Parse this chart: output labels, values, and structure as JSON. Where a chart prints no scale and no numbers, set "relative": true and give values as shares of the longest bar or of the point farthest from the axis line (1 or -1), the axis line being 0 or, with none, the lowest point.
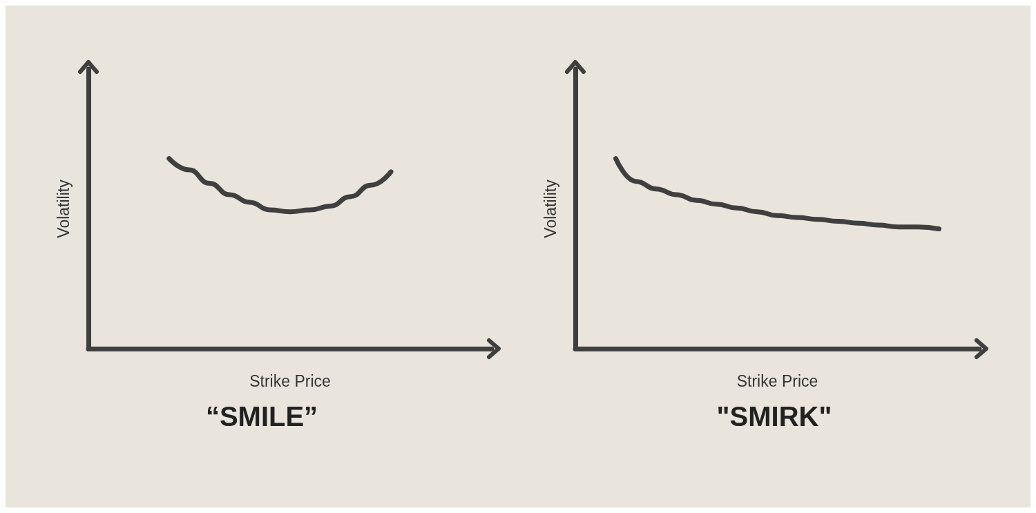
{
  "chart_data": [
    {
      "type": "line",
      "relative": true,
      "title": "“SMILE”",
      "xlabel": "Strike Price",
      "ylabel": "Volatility",
      "grid": false,
      "marker": "none",
      "line_style": "solid",
      "categories": [
        null,
        null,
        null,
        null,
        null,
        null,
        null,
        null,
        null,
        null,
        null,
        null,
        null,
        null,
        null,
        null,
        null,
        null,
        null,
        null,
        null
      ],
      "series": [
        {
          "color": "#3f3f3f",
          "values": [
            null,
            null,
            null,
            null,
            1.0,
            0.94,
            0.87,
            0.81,
            0.77,
            0.73,
            0.72,
            0.73,
            0.75,
            0.8,
            0.86,
            0.93,
            null,
            null,
            null,
            null,
            null
          ]
        }
      ]
    },
    {
      "type": "line",
      "relative": true,
      "title": "\"SMIRK\"",
      "xlabel": "Strike Price",
      "ylabel": "Volatility",
      "grid": false,
      "marker": "none",
      "line_style": "solid",
      "categories": [
        null,
        null,
        null,
        null,
        null,
        null,
        null,
        null,
        null,
        null,
        null,
        null,
        null,
        null,
        null,
        null,
        null,
        null,
        null,
        null,
        null
      ],
      "series": [
        {
          "color": "#3f3f3f",
          "values": [
            null,
            null,
            1.0,
            0.88,
            0.84,
            0.81,
            0.78,
            0.76,
            0.74,
            0.72,
            0.7,
            0.69,
            0.68,
            0.67,
            0.66,
            0.65,
            0.64,
            0.64,
            0.63,
            null,
            null
          ]
        }
      ]
    }
  ]
}
